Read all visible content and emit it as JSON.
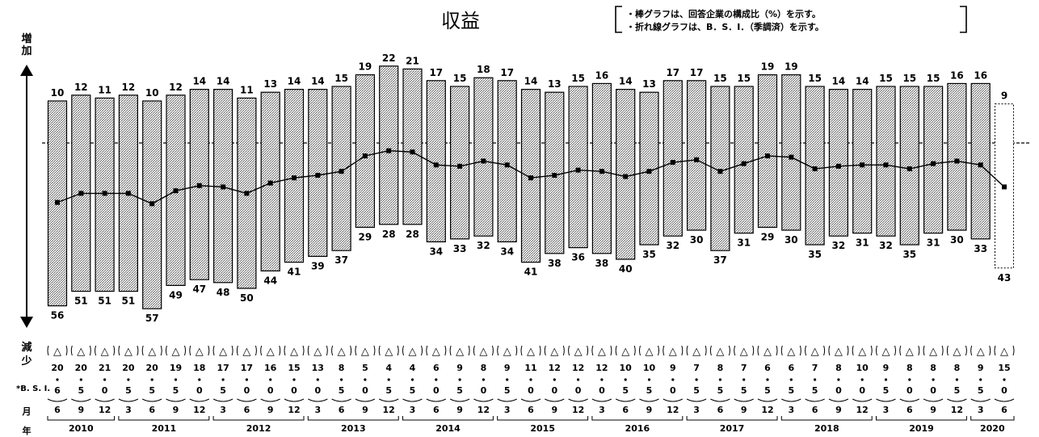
{
  "chart_data": {
    "type": "bar",
    "title": "収益",
    "legend_notes": [
      "・棒グラフは、回答企業の構成比（%）を示す。",
      "・折れ線グラフは、B．S．I．（季調済）を示す。"
    ],
    "axis_top_label": "増加",
    "axis_bottom_label": "減少",
    "bsi_row_label": "*B. S. I.",
    "month_row_label": "月",
    "year_row_label": "年",
    "months": [
      "6",
      "9",
      "12",
      "3",
      "6",
      "9",
      "12",
      "3",
      "6",
      "9",
      "12",
      "3",
      "6",
      "9",
      "12",
      "3",
      "6",
      "9",
      "12",
      "3",
      "6",
      "9",
      "12",
      "3",
      "6",
      "9",
      "12",
      "3",
      "6",
      "9",
      "12",
      "3",
      "6",
      "9",
      "12",
      "3",
      "6",
      "9",
      "12",
      "3",
      "6"
    ],
    "years": [
      {
        "label": "2010",
        "start": 0,
        "end": 2
      },
      {
        "label": "2011",
        "start": 3,
        "end": 6
      },
      {
        "label": "2012",
        "start": 7,
        "end": 10
      },
      {
        "label": "2013",
        "start": 11,
        "end": 14
      },
      {
        "label": "2014",
        "start": 15,
        "end": 18
      },
      {
        "label": "2015",
        "start": 19,
        "end": 22
      },
      {
        "label": "2016",
        "start": 23,
        "end": 26
      },
      {
        "label": "2017",
        "start": 27,
        "end": 30
      },
      {
        "label": "2018",
        "start": 31,
        "end": 34
      },
      {
        "label": "2019",
        "start": 35,
        "end": 38
      },
      {
        "label": "2020",
        "start": 39,
        "end": 40
      }
    ],
    "increase": [
      10,
      12,
      11,
      12,
      10,
      12,
      14,
      14,
      11,
      13,
      14,
      14,
      15,
      19,
      22,
      21,
      17,
      15,
      18,
      17,
      14,
      13,
      15,
      16,
      14,
      13,
      17,
      17,
      15,
      15,
      19,
      19,
      15,
      14,
      14,
      15,
      15,
      15,
      16,
      16,
      9
    ],
    "decrease": [
      56,
      51,
      51,
      51,
      57,
      49,
      47,
      48,
      50,
      44,
      41,
      39,
      37,
      29,
      28,
      28,
      34,
      33,
      32,
      34,
      41,
      38,
      36,
      38,
      40,
      35,
      32,
      30,
      37,
      31,
      29,
      30,
      35,
      32,
      31,
      32,
      35,
      31,
      30,
      33,
      43
    ],
    "bsi": [
      -46,
      -39,
      -39,
      -39,
      -47,
      -37,
      -33,
      -34,
      -39,
      -31,
      -27,
      -25,
      -22,
      -10,
      -6,
      -7,
      -17,
      -18,
      -14,
      -17,
      -27,
      -25,
      -21,
      -22,
      -26,
      -22,
      -15,
      -13,
      -22,
      -16,
      -10,
      -11,
      -20,
      -18,
      -17,
      -17,
      -20,
      -16,
      -14,
      -17,
      -34
    ],
    "bsi_labels": [
      {
        "sign": "△",
        "digits": "206"
      },
      {
        "sign": "△",
        "digits": "205"
      },
      {
        "sign": "△",
        "digits": "210"
      },
      {
        "sign": "△",
        "digits": "205"
      },
      {
        "sign": "△",
        "digits": "205"
      },
      {
        "sign": "△",
        "digits": "195"
      },
      {
        "sign": "△",
        "digits": "180"
      },
      {
        "sign": "△",
        "digits": "175"
      },
      {
        "sign": "△",
        "digits": "170"
      },
      {
        "sign": "△",
        "digits": "160"
      },
      {
        "sign": "△",
        "digits": "150"
      },
      {
        "sign": "△",
        "digits": "130"
      },
      {
        "sign": "△",
        "digits": "85"
      },
      {
        "sign": "△",
        "digits": "50"
      },
      {
        "sign": "△",
        "digits": "45"
      },
      {
        "sign": "△",
        "digits": "45"
      },
      {
        "sign": "△",
        "digits": "60"
      },
      {
        "sign": "△",
        "digits": "95"
      },
      {
        "sign": "△",
        "digits": "80"
      },
      {
        "sign": "△",
        "digits": "95"
      },
      {
        "sign": "△",
        "digits": "110"
      },
      {
        "sign": "△",
        "digits": "120"
      },
      {
        "sign": "△",
        "digits": "120"
      },
      {
        "sign": "△",
        "digits": "120"
      },
      {
        "sign": "△",
        "digits": "105"
      },
      {
        "sign": "△",
        "digits": "105"
      },
      {
        "sign": "△",
        "digits": "90"
      },
      {
        "sign": "△",
        "digits": "75"
      },
      {
        "sign": "△",
        "digits": "85"
      },
      {
        "sign": "△",
        "digits": "75"
      },
      {
        "sign": "△",
        "digits": "65"
      },
      {
        "sign": "△",
        "digits": "65"
      },
      {
        "sign": "△",
        "digits": "75"
      },
      {
        "sign": "△",
        "digits": "80"
      },
      {
        "sign": "△",
        "digits": "100"
      },
      {
        "sign": "△",
        "digits": "95"
      },
      {
        "sign": "△",
        "digits": "80"
      },
      {
        "sign": "△",
        "digits": "80"
      },
      {
        "sign": "△",
        "digits": "85"
      },
      {
        "sign": "△",
        "digits": "95"
      },
      {
        "sign": "△",
        "digits": "150"
      }
    ],
    "colors": {
      "bar_fill": "#d9d9d9",
      "bar_stroke": "#000000",
      "line": "#000000",
      "background": "#ffffff"
    }
  }
}
